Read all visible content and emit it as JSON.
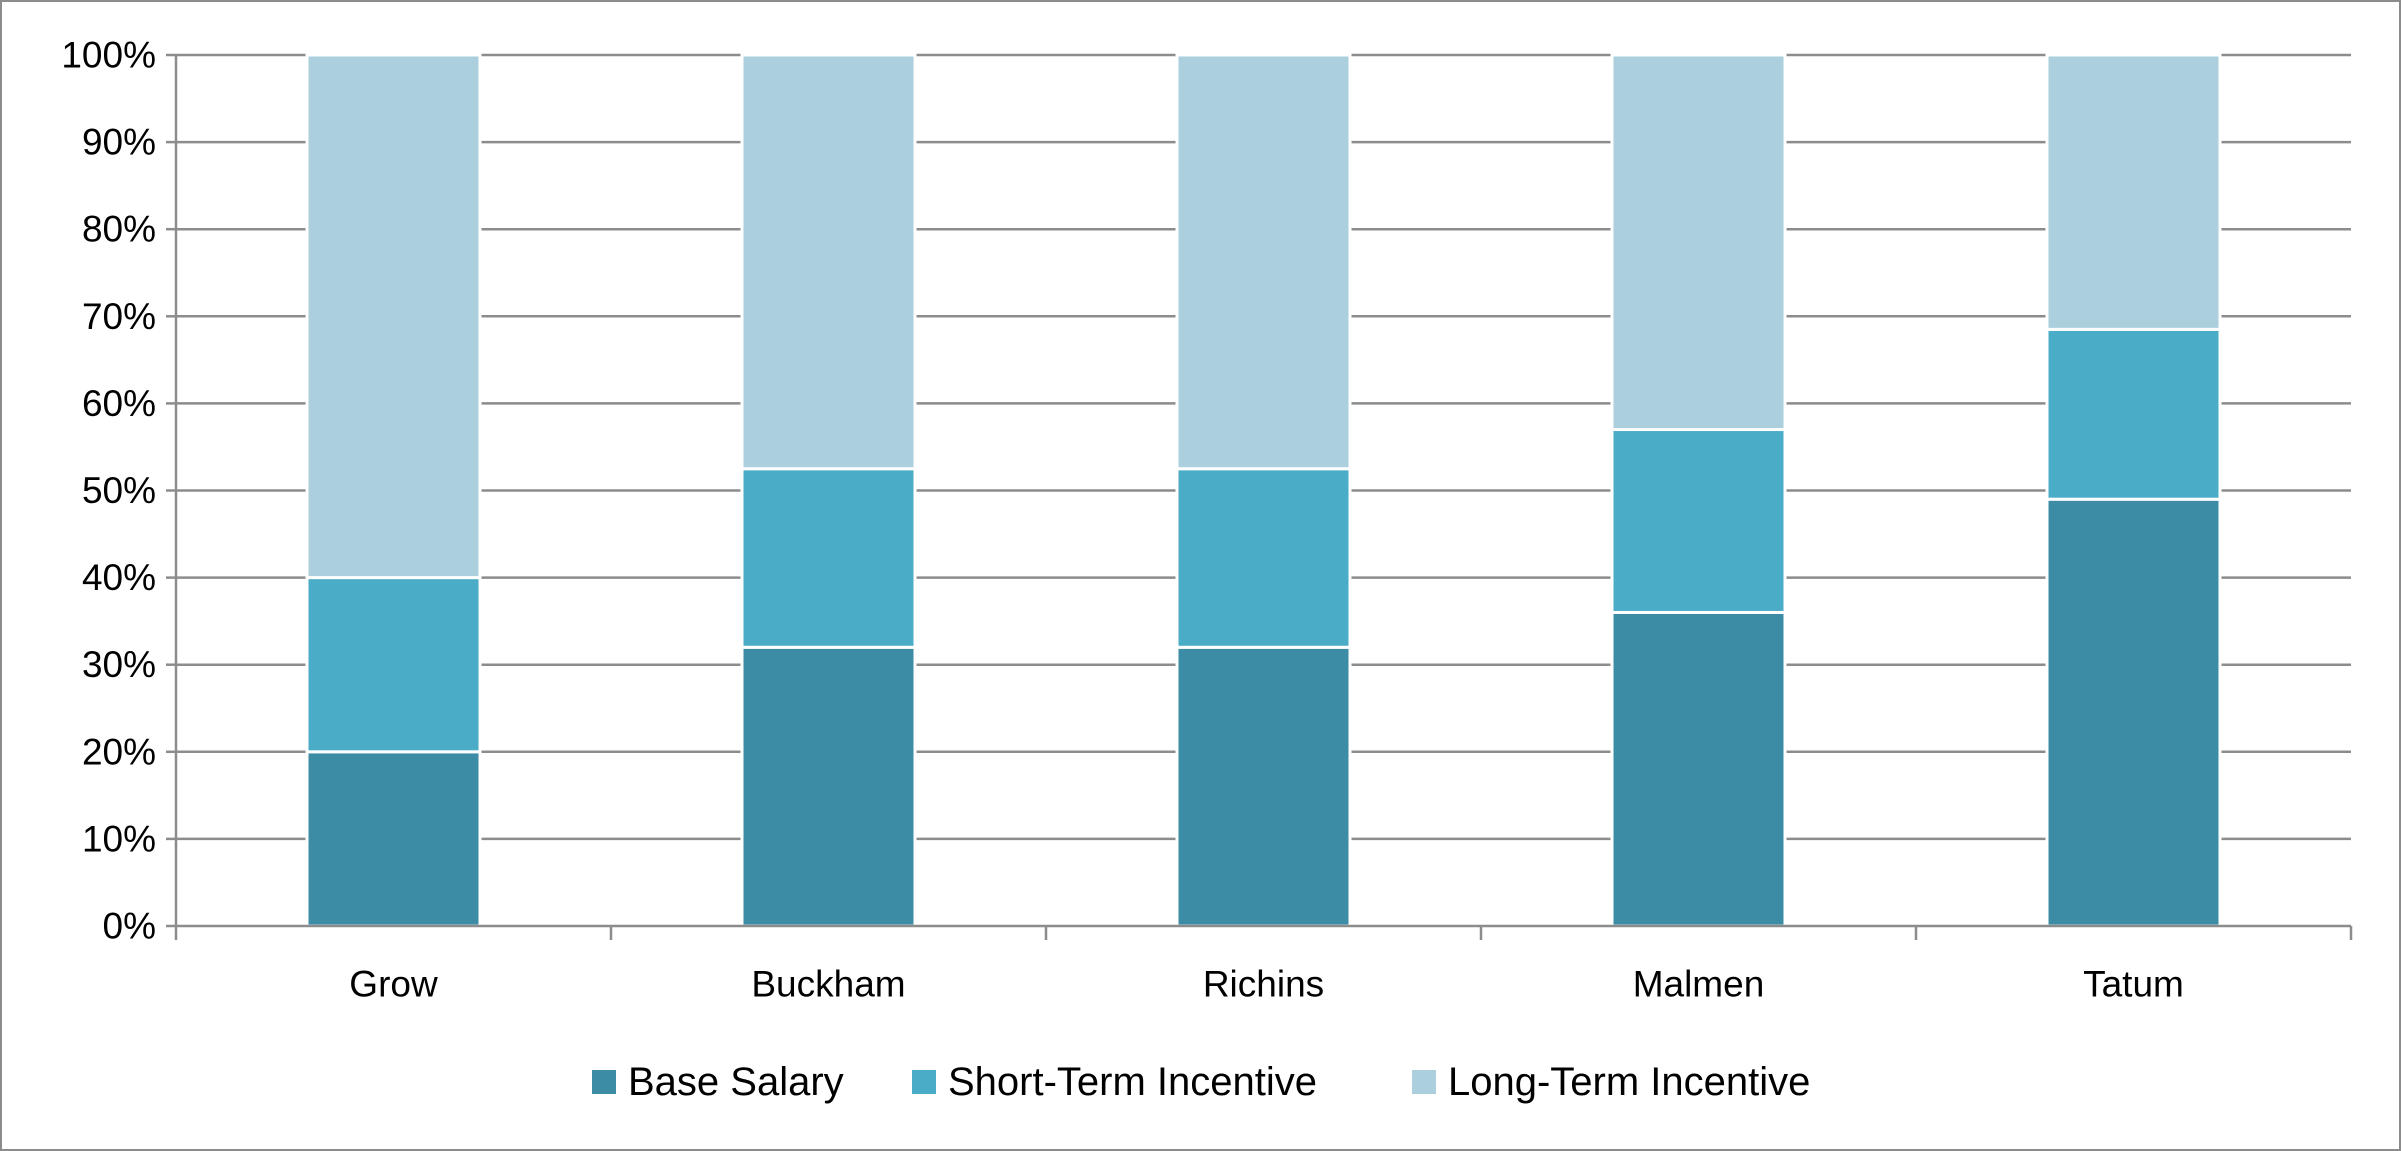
{
  "chart_data": {
    "type": "bar",
    "stacked": true,
    "percent_stacked": true,
    "title": "",
    "xlabel": "",
    "ylabel": "",
    "ylim": [
      0,
      100
    ],
    "y_tick_labels": [
      "0%",
      "10%",
      "20%",
      "30%",
      "40%",
      "50%",
      "60%",
      "70%",
      "80%",
      "90%",
      "100%"
    ],
    "categories": [
      "Grow",
      "Buckham",
      "Richins",
      "Malmen",
      "Tatum"
    ],
    "series": [
      {
        "name": "Base Salary",
        "color": "#3d8ca6",
        "values": [
          20,
          32,
          32,
          36,
          49
        ]
      },
      {
        "name": "Short-Term Incentive",
        "color": "#4aacc6",
        "values": [
          20,
          20.5,
          20.5,
          21,
          19.5
        ]
      },
      {
        "name": "Long-Term Incentive",
        "color": "#abcfdd",
        "values": [
          60,
          47.5,
          47.5,
          43,
          31.5
        ]
      }
    ],
    "grid": true,
    "legend_position": "bottom"
  }
}
